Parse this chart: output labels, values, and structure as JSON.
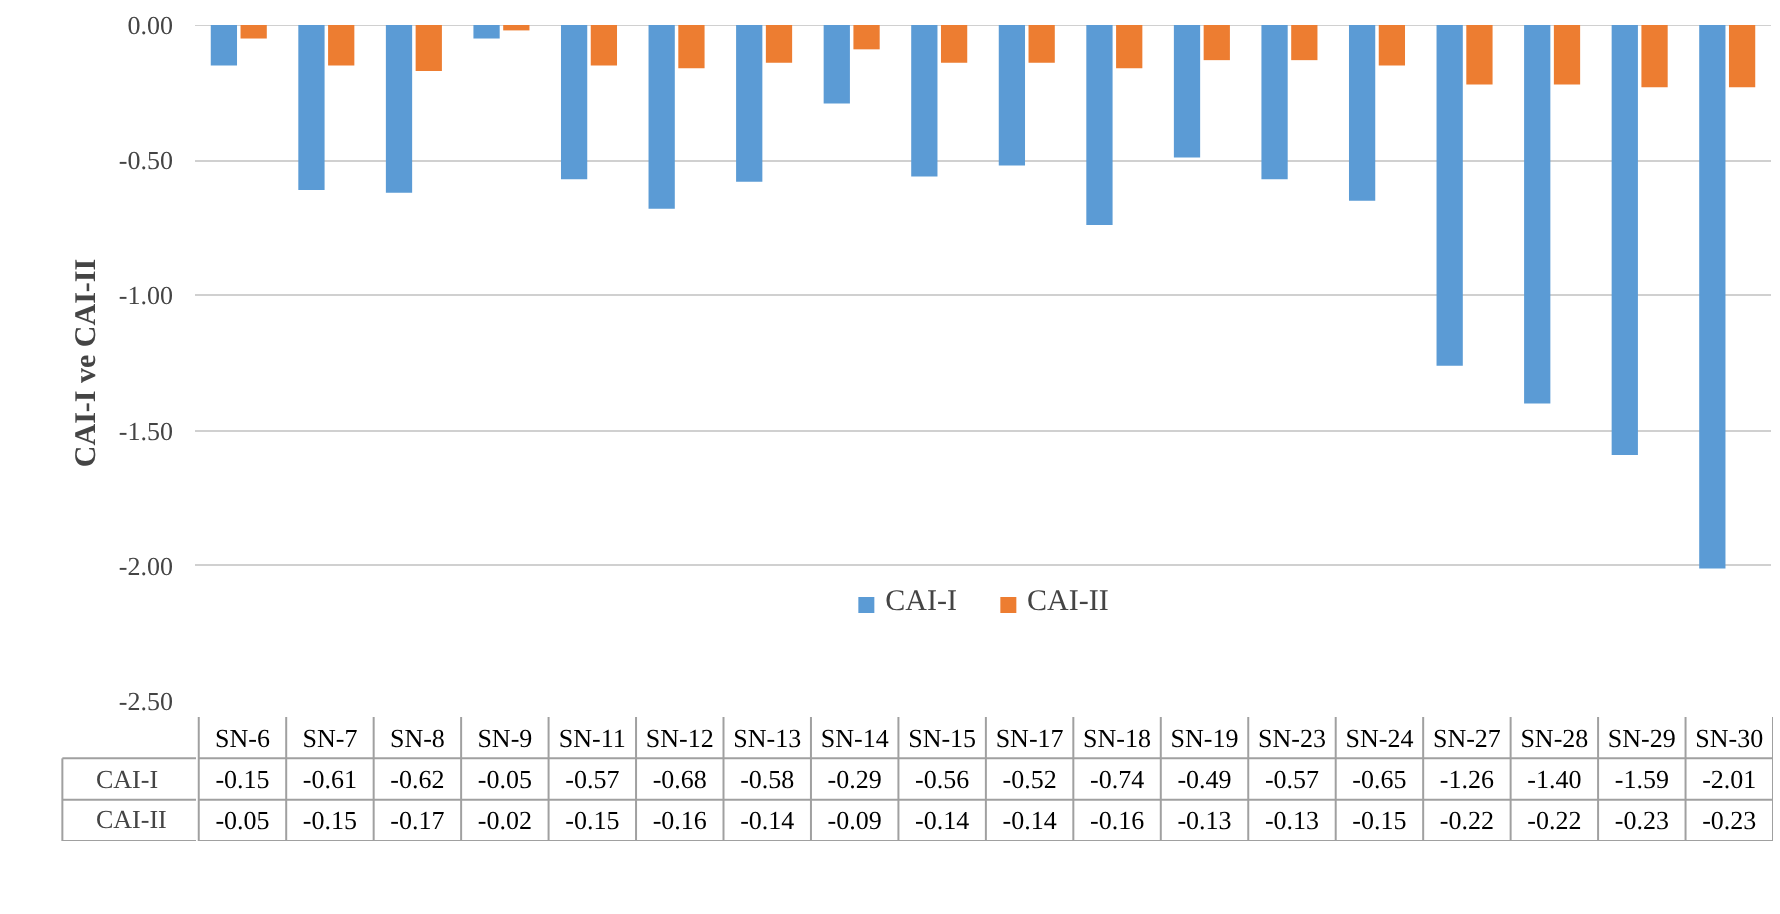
{
  "chart_data": {
    "type": "bar",
    "ylabel": "CAI-I ve CAI-II",
    "categories": [
      "SN-6",
      "SN-7",
      "SN-8",
      "SN-9",
      "SN-11",
      "SN-12",
      "SN-13",
      "SN-14",
      "SN-15",
      "SN-17",
      "SN-18",
      "SN-19",
      "SN-23",
      "SN-24",
      "SN-27",
      "SN-28",
      "SN-29",
      "SN-30"
    ],
    "series": [
      {
        "name": "CAI-I",
        "color": "#5b9bd5",
        "values": [
          -0.15,
          -0.61,
          -0.62,
          -0.05,
          -0.57,
          -0.68,
          -0.58,
          -0.29,
          -0.56,
          -0.52,
          -0.74,
          -0.49,
          -0.57,
          -0.65,
          -1.26,
          -1.4,
          -1.59,
          -2.01
        ],
        "value_labels": [
          "-0.15",
          "-0.61",
          "-0.62",
          "-0.05",
          "-0.57",
          "-0.68",
          "-0.58",
          "-0.29",
          "-0.56",
          "-0.52",
          "-0.74",
          "-0.49",
          "-0.57",
          "-0.65",
          "-1.26",
          "-1.40",
          "-1.59",
          "-2.01"
        ]
      },
      {
        "name": "CAI-II",
        "color": "#ed7d31",
        "values": [
          -0.05,
          -0.15,
          -0.17,
          -0.02,
          -0.15,
          -0.16,
          -0.14,
          -0.09,
          -0.14,
          -0.14,
          -0.16,
          -0.13,
          -0.13,
          -0.15,
          -0.22,
          -0.22,
          -0.23,
          -0.23
        ],
        "value_labels": [
          "-0.05",
          "-0.15",
          "-0.17",
          "-0.02",
          "-0.15",
          "-0.16",
          "-0.14",
          "-0.09",
          "-0.14",
          "-0.14",
          "-0.16",
          "-0.13",
          "-0.13",
          "-0.15",
          "-0.22",
          "-0.22",
          "-0.23",
          "-0.23"
        ]
      }
    ],
    "ylim": [
      -2.5,
      0
    ],
    "yticks": [
      {
        "value": 0,
        "label": "0.00"
      },
      {
        "value": -0.5,
        "label": "-0.50"
      },
      {
        "value": -1,
        "label": "-1.00"
      },
      {
        "value": -1.5,
        "label": "-1.50"
      },
      {
        "value": -2,
        "label": "-2.00"
      },
      {
        "value": -2.5,
        "label": "-2.50"
      }
    ],
    "grid": "y",
    "legend": "bottom"
  }
}
